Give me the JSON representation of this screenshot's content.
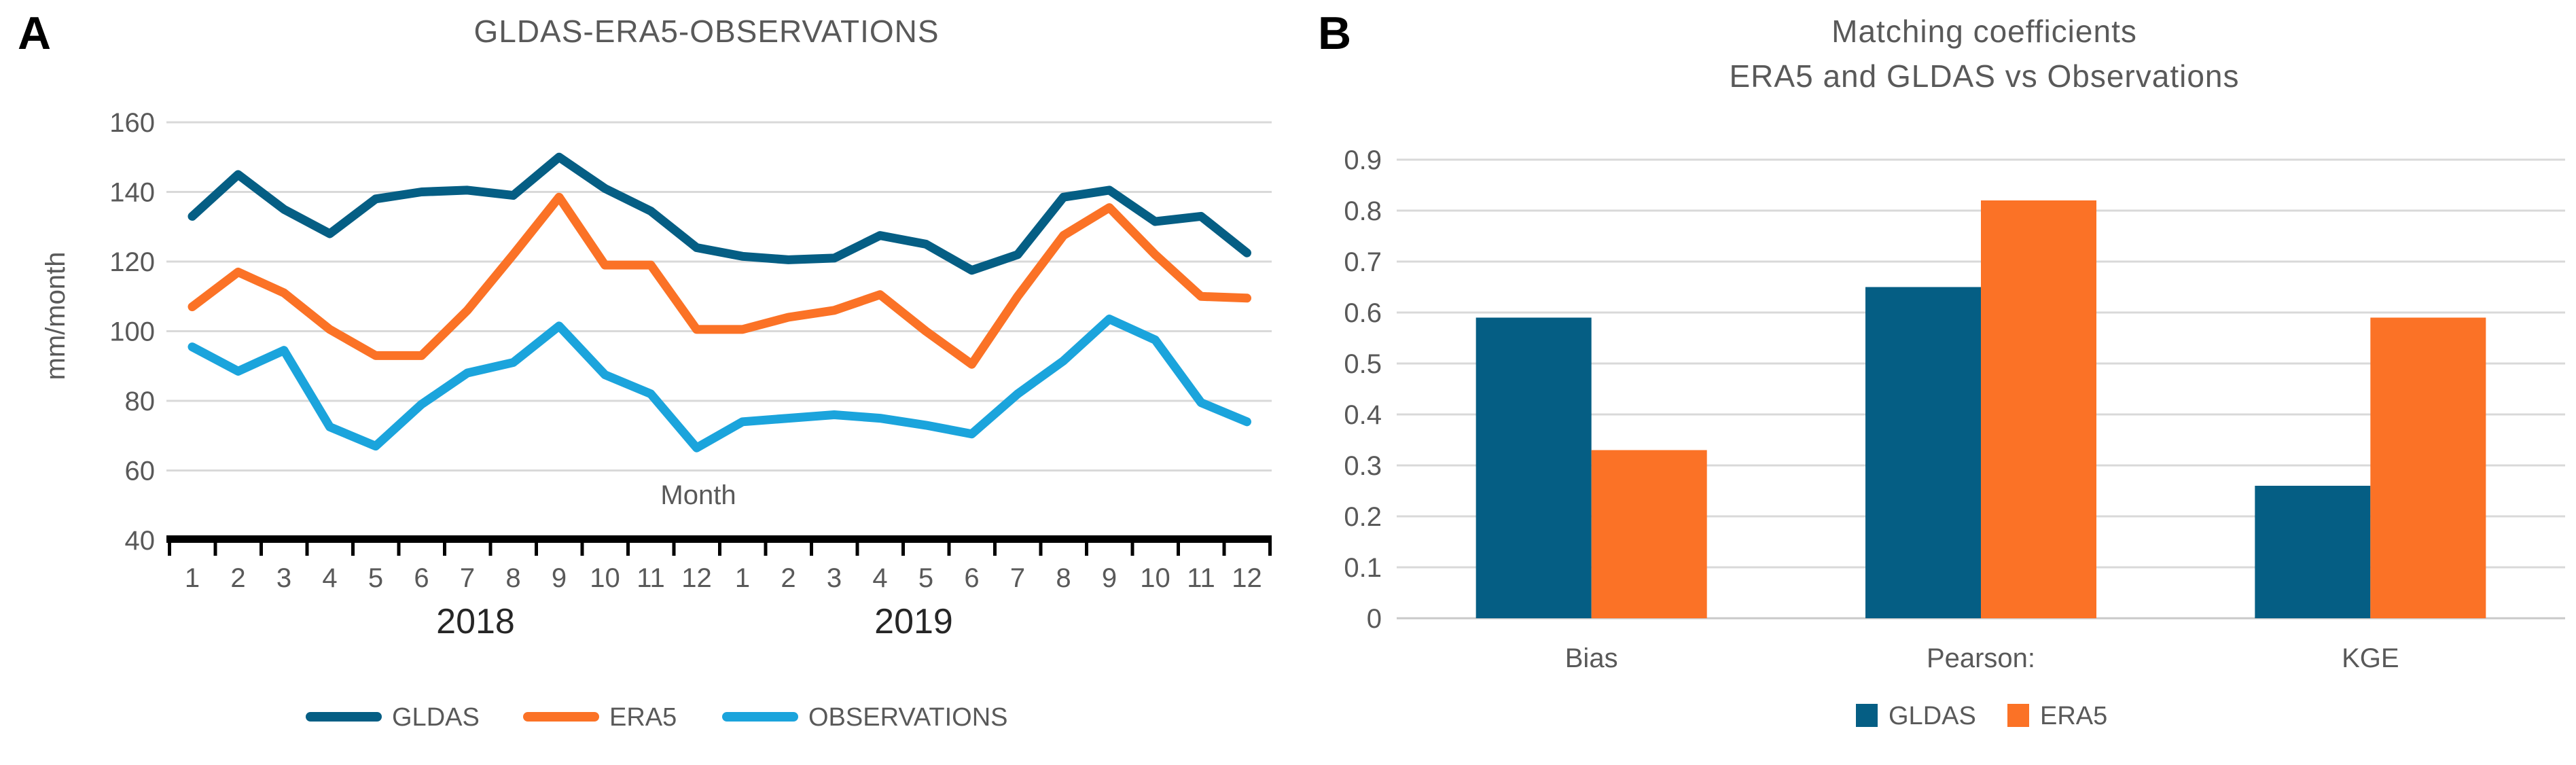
{
  "panels": [
    {
      "label": "A"
    },
    {
      "label": "B"
    }
  ],
  "style": {
    "background": "#ffffff",
    "grid_color": "#d9d9d9",
    "axis_color": "#000000",
    "text_color": "#595959",
    "year_text_color": "#262626"
  },
  "chart_data": [
    {
      "id": "A",
      "type": "line",
      "title": "GLDAS-ERA5-OBSERVATIONS",
      "xlabel": "Month",
      "ylabel": "mm/month",
      "ylim": [
        40,
        160
      ],
      "yticks": [
        40,
        60,
        80,
        100,
        120,
        140,
        160
      ],
      "grid": true,
      "legend_position": "bottom",
      "x_tick_labels": [
        "1",
        "2",
        "3",
        "4",
        "5",
        "6",
        "7",
        "8",
        "9",
        "10",
        "11",
        "12",
        "1",
        "2",
        "3",
        "4",
        "5",
        "6",
        "7",
        "8",
        "9",
        "10",
        "11",
        "12"
      ],
      "x_group_labels": [
        "2018",
        "2019"
      ],
      "series": [
        {
          "name": "GLDAS",
          "color": "#055e84",
          "values": [
            133,
            145,
            135,
            128,
            138,
            140,
            140.5,
            139,
            150,
            141,
            134.5,
            124,
            121.5,
            120.5,
            121,
            127.5,
            125,
            117.5,
            122,
            138.5,
            140.5,
            131.5,
            133,
            122.5
          ]
        },
        {
          "name": "ERA5",
          "color": "#fb7226",
          "values": [
            107,
            117,
            111,
            100.5,
            93,
            93,
            106,
            122,
            138.5,
            119,
            119,
            100.5,
            100.5,
            104,
            106,
            110.5,
            100,
            90.5,
            110,
            127.5,
            135.5,
            122,
            110,
            109.5
          ]
        },
        {
          "name": "OBSERVATIONS",
          "color": "#1ba4dc",
          "values": [
            95.5,
            88.5,
            94.5,
            72.5,
            67,
            79,
            88,
            91,
            101.5,
            87.5,
            82,
            66.5,
            74,
            75,
            76,
            75,
            73,
            70.5,
            82,
            91.5,
            103.5,
            97.5,
            79.5,
            74
          ]
        }
      ]
    },
    {
      "id": "B",
      "type": "bar",
      "title_lines": [
        "Matching coefficients",
        "ERA5 and GLDAS  vs Observations"
      ],
      "categories": [
        "Bias",
        "Pearson:",
        "KGE"
      ],
      "ylim": [
        0,
        0.9
      ],
      "ytick_labels": [
        "0",
        "0.1",
        "0.2",
        "0.3",
        "0.4",
        "0.5",
        "0.6",
        "0.7",
        "0.8",
        "0.9"
      ],
      "grid": true,
      "legend_position": "bottom",
      "series": [
        {
          "name": "GLDAS",
          "color": "#055e84",
          "values": [
            0.59,
            0.65,
            0.26
          ]
        },
        {
          "name": "ERA5",
          "color": "#fb7226",
          "values": [
            0.33,
            0.82,
            0.59
          ]
        }
      ]
    }
  ]
}
